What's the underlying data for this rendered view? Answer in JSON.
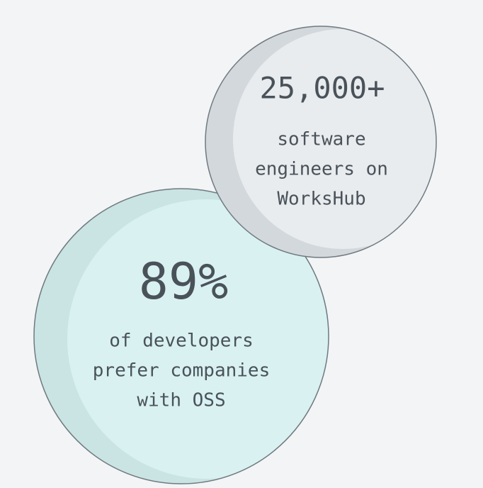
{
  "stats": [
    {
      "value": "89%",
      "description": [
        "of developers",
        "prefer companies",
        "with OSS"
      ]
    },
    {
      "value": "25,000+",
      "description": [
        "software",
        "engineers on",
        "WorksHub"
      ]
    }
  ]
}
